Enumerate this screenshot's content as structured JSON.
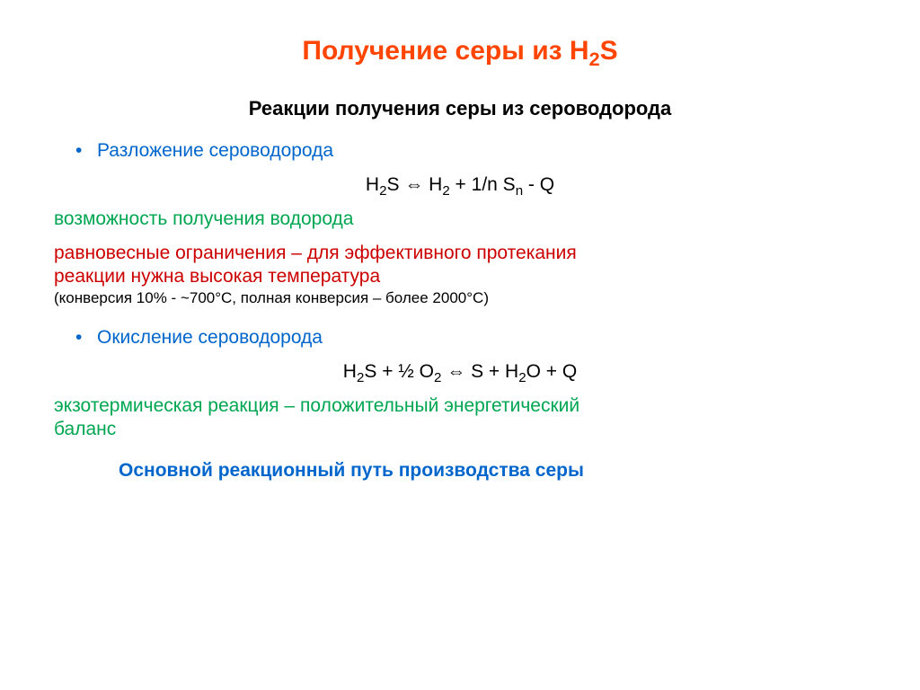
{
  "colors": {
    "orange": "#ff4500",
    "blue": "#0066cc",
    "green": "#00a651",
    "red": "#cc0000",
    "black": "#000000"
  },
  "fontsizes": {
    "title": 30,
    "subtitle": 22,
    "body": 21,
    "small": 17
  },
  "title_prefix": "Получение серы из H",
  "title_sub": "2",
  "title_suffix": "S",
  "subtitle": "Реакции получения серы из сероводорода",
  "bullet_symbol": "•",
  "b1_label": "Разложение сероводорода",
  "eq1_a": "H",
  "eq1_a_sub": "2",
  "eq1_b": "S ",
  "eq1_arrow": "⇔",
  "eq1_c": " H",
  "eq1_c_sub": "2",
  "eq1_d": " + 1/n S",
  "eq1_d_sub": "n",
  "eq1_e": " - Q",
  "green1": "возможность получения водорода",
  "red1_l1": "равновесные ограничения – для эффективного протекания",
  "red1_l2": "реакции нужна высокая температура",
  "red1_small": "(конверсия 10% - ~700°C, полная конверсия – более 2000°C)",
  "b2_label": "Окисление сероводорода",
  "eq2_a": "H",
  "eq2_a_sub": "2",
  "eq2_b": "S + ½ O",
  "eq2_b_sub": "2",
  "eq2_c": " ",
  "eq2_arrow": "⇔",
  "eq2_d": " S + H",
  "eq2_d_sub": "2",
  "eq2_e": "O + Q",
  "green2_l1": "экзотермическая реакция – положительный энергетический",
  "green2_l2": "баланс",
  "bottom": "Основной реакционный путь производства серы"
}
